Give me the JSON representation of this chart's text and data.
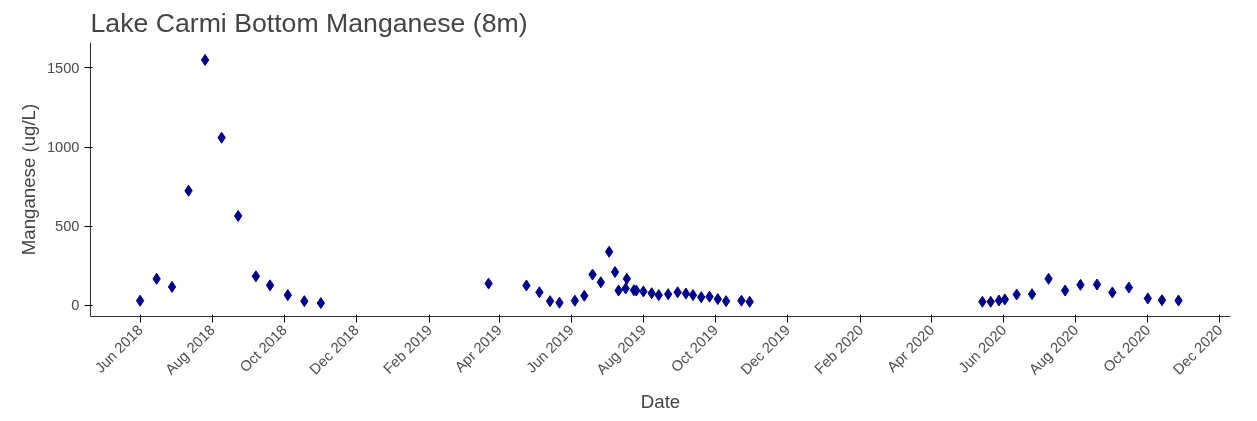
{
  "chart_data": {
    "type": "scatter",
    "title": "Lake Carmi Bottom Manganese (8m)",
    "xlabel": "Date",
    "ylabel": "Manganese (ug/L)",
    "x": [
      "2018-06-01",
      "2018-06-15",
      "2018-06-28",
      "2018-07-12",
      "2018-07-26",
      "2018-08-09",
      "2018-08-23",
      "2018-09-07",
      "2018-09-19",
      "2018-10-04",
      "2018-10-18",
      "2018-11-01",
      "2019-03-23",
      "2019-04-24",
      "2019-05-05",
      "2019-05-14",
      "2019-05-22",
      "2019-06-04",
      "2019-06-12",
      "2019-06-19",
      "2019-06-26",
      "2019-07-03",
      "2019-07-08",
      "2019-07-11",
      "2019-07-17",
      "2019-07-18",
      "2019-07-24",
      "2019-07-26",
      "2019-08-01",
      "2019-08-08",
      "2019-08-14",
      "2019-08-22",
      "2019-08-30",
      "2019-09-06",
      "2019-09-12",
      "2019-09-19",
      "2019-09-26",
      "2019-10-03",
      "2019-10-10",
      "2019-10-23",
      "2019-10-30",
      "2020-05-14",
      "2020-05-21",
      "2020-05-28",
      "2020-06-02",
      "2020-06-12",
      "2020-06-25",
      "2020-07-09",
      "2020-07-23",
      "2020-08-05",
      "2020-08-19",
      "2020-09-01",
      "2020-09-15",
      "2020-10-01",
      "2020-10-13",
      "2020-10-27"
    ],
    "series": [
      {
        "color": "#00008b",
        "values": [
          30,
          168,
          117,
          724,
          1550,
          1059,
          565,
          184,
          127,
          65,
          27,
          15,
          138,
          126,
          83,
          27,
          17,
          30,
          61,
          195,
          146,
          339,
          211,
          94,
          107,
          168,
          96,
          94,
          88,
          77,
          65,
          71,
          83,
          75,
          65,
          52,
          55,
          40,
          27,
          30,
          23,
          23,
          23,
          31,
          38,
          69,
          71,
          168,
          94,
          130,
          132,
          82,
          113,
          44,
          33,
          31
        ]
      }
    ],
    "marker": "diamond",
    "grid": false,
    "xlim": [
      "2018-04-20",
      "2020-12-10"
    ],
    "ylim": [
      -70,
      1660
    ],
    "yticks": [
      0,
      500,
      1000,
      1500
    ],
    "xticks": [
      {
        "value": "2018-06-01",
        "label": "Jun 2018"
      },
      {
        "value": "2018-08-01",
        "label": "Aug 2018"
      },
      {
        "value": "2018-10-01",
        "label": "Oct 2018"
      },
      {
        "value": "2018-12-01",
        "label": "Dec 2018"
      },
      {
        "value": "2019-02-01",
        "label": "Feb 2019"
      },
      {
        "value": "2019-04-01",
        "label": "Apr 2019"
      },
      {
        "value": "2019-06-01",
        "label": "Jun 2019"
      },
      {
        "value": "2019-08-01",
        "label": "Aug 2019"
      },
      {
        "value": "2019-10-01",
        "label": "Oct 2019"
      },
      {
        "value": "2019-12-01",
        "label": "Dec 2019"
      },
      {
        "value": "2020-02-01",
        "label": "Feb 2020"
      },
      {
        "value": "2020-04-01",
        "label": "Apr 2020"
      },
      {
        "value": "2020-06-01",
        "label": "Jun 2020"
      },
      {
        "value": "2020-08-01",
        "label": "Aug 2020"
      },
      {
        "value": "2020-10-01",
        "label": "Oct 2020"
      },
      {
        "value": "2020-12-01",
        "label": "Dec 2020"
      }
    ]
  }
}
